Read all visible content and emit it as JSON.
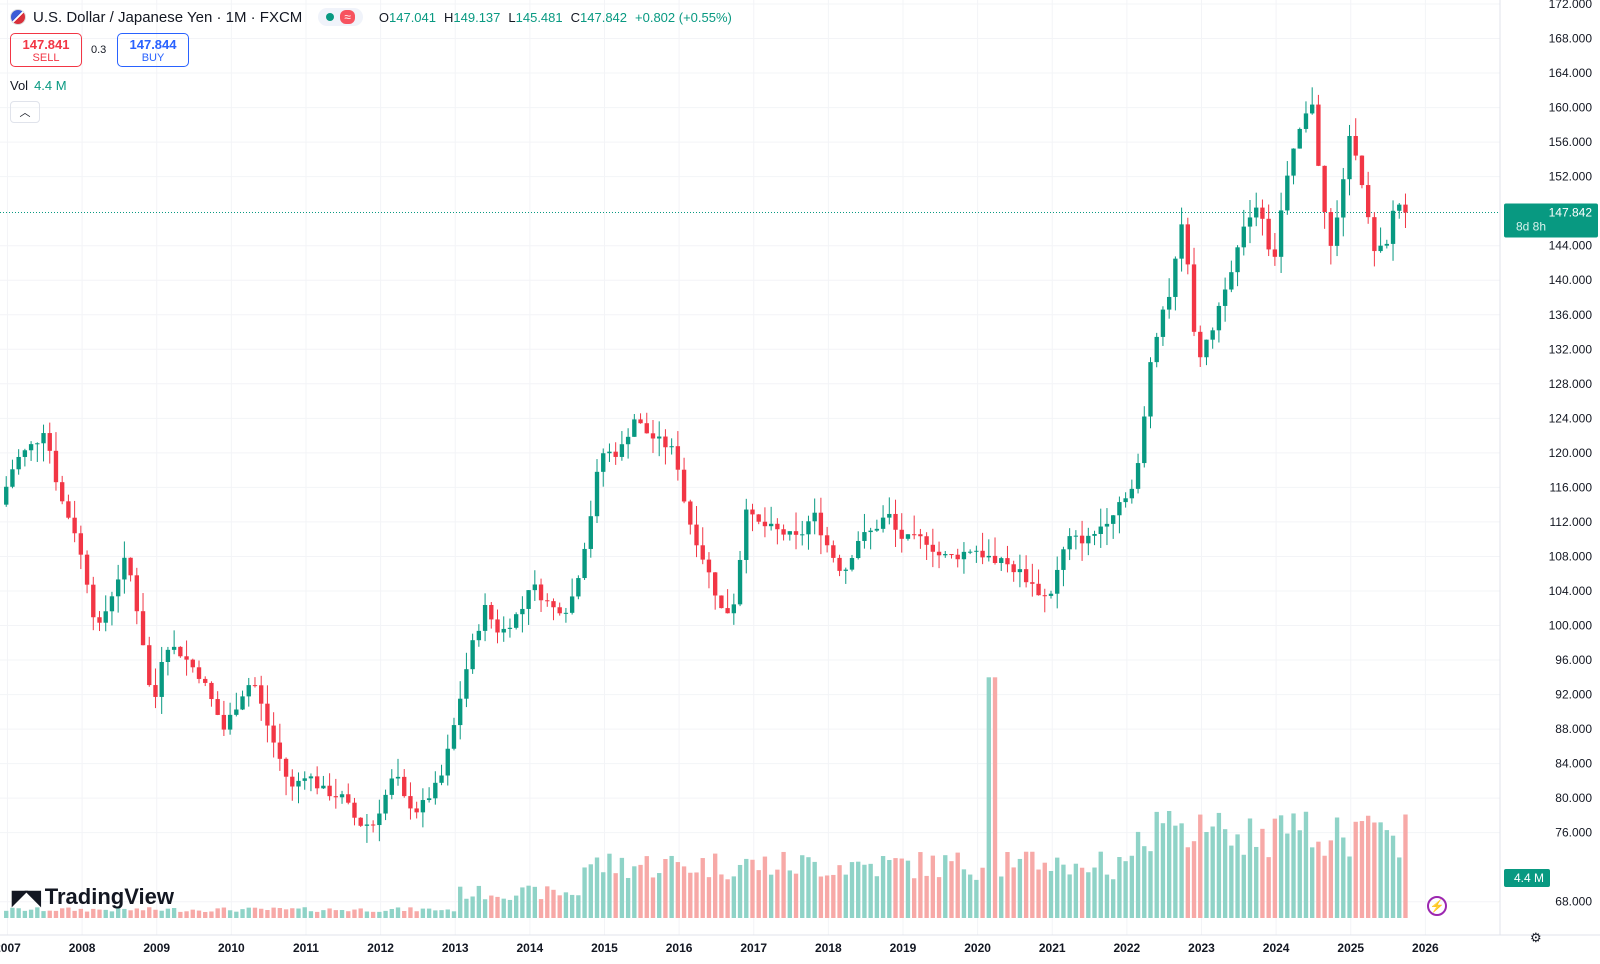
{
  "header": {
    "title": "U.S. Dollar / Japanese Yen · 1M · FXCM",
    "open_label": "O",
    "open": "147.041",
    "high_label": "H",
    "high": "149.137",
    "low_label": "L",
    "low": "145.481",
    "close_label": "C",
    "close": "147.842",
    "change": "+0.802 (+0.55%)",
    "pill_icon": "wave-icon"
  },
  "trade": {
    "sell_price": "147.841",
    "sell_label": "SELL",
    "spread": "0.3",
    "buy_price": "147.844",
    "buy_label": "BUY"
  },
  "volume": {
    "label": "Vol",
    "value": "4.4 M"
  },
  "branding": {
    "logo": "TradingView"
  },
  "price_badge": {
    "price": "147.842",
    "countdown": "8d 8h"
  },
  "volume_badge": "4.4 M",
  "colors": {
    "up": "#089981",
    "down": "#f23645",
    "up_vol": "#8fd3c7",
    "down_vol": "#f7a9a7",
    "accent": "#089981"
  },
  "chart_data": {
    "type": "candlestick",
    "price_axis": {
      "ticks": [
        "68.000",
        "76.000",
        "80.000",
        "84.000",
        "88.000",
        "92.000",
        "96.000",
        "100.000",
        "104.000",
        "108.000",
        "112.000",
        "116.000",
        "120.000",
        "124.000",
        "128.000",
        "132.000",
        "136.000",
        "140.000",
        "144.000",
        "152.000",
        "156.000",
        "160.000",
        "164.000",
        "168.000",
        "172.000"
      ],
      "range": [
        66,
        172
      ]
    },
    "time_axis": {
      "ticks": [
        "2007",
        "2008",
        "2009",
        "2010",
        "2011",
        "2012",
        "2013",
        "2014",
        "2015",
        "2016",
        "2017",
        "2018",
        "2019",
        "2020",
        "2021",
        "2022",
        "2023",
        "2024",
        "2025",
        "2026"
      ],
      "range": [
        2006.9,
        2027.0
      ]
    },
    "current_price": 147.842,
    "anchors": [
      [
        2006.9,
        114
      ],
      [
        2007.1,
        119
      ],
      [
        2007.4,
        121.5
      ],
      [
        2007.5,
        123
      ],
      [
        2007.7,
        115
      ],
      [
        2007.9,
        111
      ],
      [
        2008.1,
        104
      ],
      [
        2008.2,
        99
      ],
      [
        2008.5,
        106
      ],
      [
        2008.6,
        108
      ],
      [
        2008.8,
        99
      ],
      [
        2008.95,
        90
      ],
      [
        2009.1,
        98
      ],
      [
        2009.3,
        97
      ],
      [
        2009.6,
        94
      ],
      [
        2009.9,
        88
      ],
      [
        2010.2,
        93
      ],
      [
        2010.3,
        93.5
      ],
      [
        2010.5,
        88
      ],
      [
        2010.8,
        81
      ],
      [
        2011.0,
        83
      ],
      [
        2011.2,
        81
      ],
      [
        2011.5,
        80
      ],
      [
        2011.7,
        77
      ],
      [
        2011.9,
        77
      ],
      [
        2012.2,
        83
      ],
      [
        2012.3,
        80
      ],
      [
        2012.5,
        78.5
      ],
      [
        2012.8,
        82
      ],
      [
        2012.95,
        87
      ],
      [
        2013.2,
        97
      ],
      [
        2013.4,
        102
      ],
      [
        2013.6,
        99
      ],
      [
        2013.9,
        102
      ],
      [
        2014.0,
        105
      ],
      [
        2014.3,
        102
      ],
      [
        2014.5,
        102
      ],
      [
        2014.6,
        104
      ],
      [
        2014.8,
        112
      ],
      [
        2014.95,
        120
      ],
      [
        2015.2,
        120
      ],
      [
        2015.4,
        124
      ],
      [
        2015.6,
        122
      ],
      [
        2015.8,
        121
      ],
      [
        2015.95,
        120
      ],
      [
        2016.1,
        113
      ],
      [
        2016.4,
        106
      ],
      [
        2016.6,
        101
      ],
      [
        2016.75,
        103
      ],
      [
        2016.9,
        114
      ],
      [
        2017.0,
        112
      ],
      [
        2017.3,
        111
      ],
      [
        2017.6,
        110
      ],
      [
        2017.8,
        113
      ],
      [
        2018.0,
        109
      ],
      [
        2018.2,
        106
      ],
      [
        2018.4,
        110
      ],
      [
        2018.6,
        111
      ],
      [
        2018.8,
        113
      ],
      [
        2018.9,
        111
      ],
      [
        2019.0,
        110
      ],
      [
        2019.3,
        110
      ],
      [
        2019.5,
        108
      ],
      [
        2019.7,
        108
      ],
      [
        2019.95,
        109
      ],
      [
        2020.1,
        108
      ],
      [
        2020.3,
        107.5
      ],
      [
        2020.6,
        106
      ],
      [
        2020.8,
        104
      ],
      [
        2020.95,
        103
      ],
      [
        2021.2,
        110
      ],
      [
        2021.5,
        110
      ],
      [
        2021.8,
        113
      ],
      [
        2021.95,
        115
      ],
      [
        2022.1,
        116
      ],
      [
        2022.2,
        121
      ],
      [
        2022.3,
        130
      ],
      [
        2022.45,
        136
      ],
      [
        2022.6,
        139
      ],
      [
        2022.75,
        148
      ],
      [
        2022.85,
        138
      ],
      [
        2022.95,
        131
      ],
      [
        2023.1,
        133
      ],
      [
        2023.3,
        139
      ],
      [
        2023.5,
        144
      ],
      [
        2023.7,
        149
      ],
      [
        2023.85,
        147
      ],
      [
        2023.95,
        141
      ],
      [
        2024.1,
        150
      ],
      [
        2024.3,
        157
      ],
      [
        2024.5,
        161
      ],
      [
        2024.6,
        150
      ],
      [
        2024.75,
        143
      ],
      [
        2024.9,
        152
      ],
      [
        2025.0,
        157
      ],
      [
        2025.1,
        154
      ],
      [
        2025.2,
        149
      ],
      [
        2025.3,
        143
      ],
      [
        2025.5,
        144
      ],
      [
        2025.6,
        150
      ],
      [
        2025.7,
        147.842
      ]
    ],
    "volume_spike": [
      2020.2,
      94
    ]
  }
}
